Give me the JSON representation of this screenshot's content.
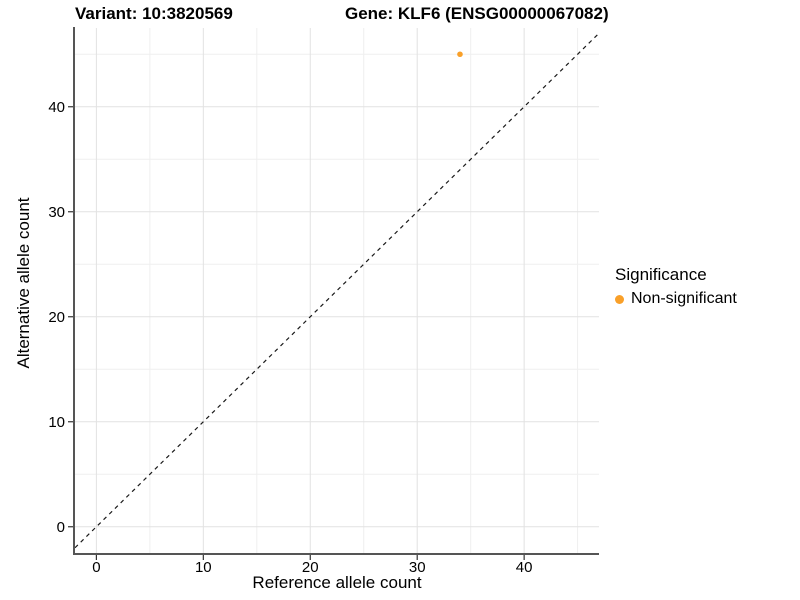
{
  "header": {
    "title_left": "Variant: 10:3820569",
    "title_right": "Gene: KLF6 (ENSG00000067082)"
  },
  "chart_data": {
    "type": "scatter",
    "title": "Variant: 10:3820569  /  Gene: KLF6 (ENSG00000067082)",
    "xlabel": "Reference allele count",
    "ylabel": "Alternative allele count",
    "xlim": [
      -2,
      47
    ],
    "ylim": [
      -2.5,
      47.5
    ],
    "x_ticks": [
      0,
      10,
      20,
      30,
      40
    ],
    "y_ticks": [
      0,
      10,
      20,
      30,
      40
    ],
    "x_minor": [
      5,
      15,
      25,
      35,
      45
    ],
    "y_minor": [
      5,
      15,
      25,
      35,
      45
    ],
    "grid": "major+minor on white background",
    "identity_line": {
      "slope": 1,
      "intercept": 0,
      "style": "dashed",
      "color": "#1a1a1a"
    },
    "series": [
      {
        "name": "Non-significant",
        "color": "#F9A029",
        "points": [
          {
            "x": 34,
            "y": 45
          }
        ]
      }
    ],
    "legend": {
      "title": "Significance",
      "position": "right",
      "entries": [
        {
          "label": "Non-significant",
          "color": "#F9A029"
        }
      ]
    }
  },
  "colors": {
    "grid_major": "#E2E2E2",
    "grid_minor": "#EFEFEF",
    "axis_line": "#555555",
    "tick_mark": "#333333",
    "text": "#000000"
  }
}
